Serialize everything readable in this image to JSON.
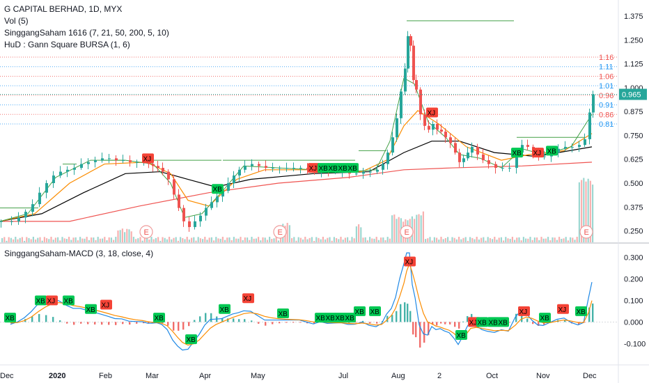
{
  "header": {
    "symbol": "G CAPITAL BERHAD, 1D, MYX",
    "vol": "Vol (5)",
    "indicator1": "SinggangSaham 1616 (7, 21, 50, 200, 5, 10)",
    "indicator2": "HuD : Gann Square BURSA (1, 6)"
  },
  "macd_pane": {
    "title": "SinggangSaham-MACD (3, 18, close, 4)"
  },
  "colors": {
    "up": "#26a69a",
    "down": "#ef5350",
    "ma7": "#43a047",
    "ma21": "#fb8c00",
    "ma50": "#000000",
    "ma200": "#ef5350",
    "macd": "#1e88e5",
    "signal": "#fb8c00",
    "gann_blue": "#2196f3",
    "gann_red": "#ef5350",
    "signal_green": "#00c853",
    "signal_red": "#f44336"
  },
  "chart_data": {
    "type": "candlestick",
    "price_axis": {
      "ticks": [
        "1.375",
        "1.250",
        "1.125",
        "1.000",
        "0.875",
        "0.750",
        "0.625",
        "0.500",
        "0.375",
        "0.250"
      ]
    },
    "current_price": "0.965",
    "gann_levels": [
      {
        "value": "1.16",
        "color": "red"
      },
      {
        "value": "1.11",
        "color": "blue"
      },
      {
        "value": "1.06",
        "color": "red"
      },
      {
        "value": "1.01",
        "color": "blue"
      },
      {
        "value": "0.96",
        "color": "red"
      },
      {
        "value": "0.91",
        "color": "blue"
      },
      {
        "value": "0.86",
        "color": "red"
      },
      {
        "value": "0.81",
        "color": "blue"
      }
    ],
    "x_axis": {
      "labels": [
        "Dec",
        "2020",
        "Feb",
        "Mar",
        "Apr",
        "May",
        "Jul",
        "Aug",
        "2",
        "Oct",
        "Nov",
        "Dec"
      ]
    },
    "price_series": [
      [
        0,
        0.3
      ],
      [
        15,
        0.3
      ],
      [
        25,
        0.32
      ],
      [
        35,
        0.35
      ],
      [
        45,
        0.39
      ],
      [
        55,
        0.45
      ],
      [
        65,
        0.5
      ],
      [
        75,
        0.54
      ],
      [
        85,
        0.56
      ],
      [
        95,
        0.57
      ],
      [
        105,
        0.58
      ],
      [
        115,
        0.6
      ],
      [
        125,
        0.61
      ],
      [
        135,
        0.62
      ],
      [
        145,
        0.63
      ],
      [
        155,
        0.63
      ],
      [
        165,
        0.62
      ],
      [
        175,
        0.62
      ],
      [
        185,
        0.61
      ],
      [
        195,
        0.61
      ],
      [
        205,
        0.61
      ],
      [
        212,
        0.6
      ],
      [
        218,
        0.59
      ],
      [
        225,
        0.58
      ],
      [
        232,
        0.56
      ],
      [
        240,
        0.52
      ],
      [
        248,
        0.44
      ],
      [
        255,
        0.37
      ],
      [
        262,
        0.3
      ],
      [
        270,
        0.27
      ],
      [
        278,
        0.3
      ],
      [
        286,
        0.33
      ],
      [
        294,
        0.37
      ],
      [
        302,
        0.4
      ],
      [
        310,
        0.43
      ],
      [
        318,
        0.46
      ],
      [
        326,
        0.5
      ],
      [
        334,
        0.54
      ],
      [
        342,
        0.57
      ],
      [
        350,
        0.59
      ],
      [
        360,
        0.6
      ],
      [
        370,
        0.59
      ],
      [
        380,
        0.58
      ],
      [
        390,
        0.58
      ],
      [
        400,
        0.58
      ],
      [
        410,
        0.58
      ],
      [
        420,
        0.58
      ],
      [
        430,
        0.58
      ],
      [
        440,
        0.57
      ],
      [
        450,
        0.56
      ],
      [
        460,
        0.57
      ],
      [
        470,
        0.56
      ],
      [
        480,
        0.56
      ],
      [
        490,
        0.56
      ],
      [
        500,
        0.55
      ],
      [
        510,
        0.55
      ],
      [
        520,
        0.56
      ],
      [
        530,
        0.56
      ],
      [
        540,
        0.57
      ],
      [
        548,
        0.6
      ],
      [
        555,
        0.66
      ],
      [
        562,
        0.74
      ],
      [
        568,
        0.84
      ],
      [
        574,
        0.98
      ],
      [
        580,
        1.1
      ],
      [
        584,
        1.27
      ],
      [
        588,
        1.22
      ],
      [
        592,
        1.04
      ],
      [
        596,
        0.99
      ],
      [
        602,
        0.86
      ],
      [
        608,
        0.8
      ],
      [
        614,
        0.78
      ],
      [
        620,
        0.81
      ],
      [
        626,
        0.78
      ],
      [
        632,
        0.77
      ],
      [
        638,
        0.74
      ],
      [
        645,
        0.71
      ],
      [
        652,
        0.66
      ],
      [
        658,
        0.61
      ],
      [
        664,
        0.63
      ],
      [
        670,
        0.66
      ],
      [
        676,
        0.69
      ],
      [
        684,
        0.65
      ],
      [
        692,
        0.62
      ],
      [
        700,
        0.6
      ],
      [
        710,
        0.58
      ],
      [
        720,
        0.58
      ],
      [
        730,
        0.58
      ],
      [
        740,
        0.66
      ],
      [
        748,
        0.7
      ],
      [
        756,
        0.69
      ],
      [
        764,
        0.66
      ],
      [
        772,
        0.64
      ],
      [
        780,
        0.64
      ],
      [
        790,
        0.66
      ],
      [
        800,
        0.68
      ],
      [
        810,
        0.69
      ],
      [
        820,
        0.69
      ],
      [
        830,
        0.7
      ],
      [
        838,
        0.73
      ],
      [
        845,
        0.87
      ],
      [
        850,
        0.965
      ]
    ],
    "ma_lines": {
      "ma7": [
        [
          0,
          0.3
        ],
        [
          40,
          0.34
        ],
        [
          80,
          0.53
        ],
        [
          130,
          0.62
        ],
        [
          180,
          0.62
        ],
        [
          220,
          0.6
        ],
        [
          245,
          0.5
        ],
        [
          265,
          0.32
        ],
        [
          290,
          0.34
        ],
        [
          320,
          0.46
        ],
        [
          350,
          0.59
        ],
        [
          400,
          0.58
        ],
        [
          450,
          0.57
        ],
        [
          500,
          0.56
        ],
        [
          540,
          0.57
        ],
        [
          560,
          0.72
        ],
        [
          580,
          1.05
        ],
        [
          595,
          1.02
        ],
        [
          615,
          0.82
        ],
        [
          640,
          0.74
        ],
        [
          660,
          0.65
        ],
        [
          690,
          0.63
        ],
        [
          720,
          0.58
        ],
        [
          750,
          0.68
        ],
        [
          780,
          0.65
        ],
        [
          820,
          0.69
        ],
        [
          850,
          0.86
        ]
      ],
      "ma21": [
        [
          0,
          0.3
        ],
        [
          50,
          0.34
        ],
        [
          100,
          0.5
        ],
        [
          150,
          0.6
        ],
        [
          210,
          0.61
        ],
        [
          245,
          0.55
        ],
        [
          270,
          0.41
        ],
        [
          300,
          0.38
        ],
        [
          340,
          0.52
        ],
        [
          380,
          0.57
        ],
        [
          450,
          0.57
        ],
        [
          520,
          0.56
        ],
        [
          555,
          0.62
        ],
        [
          580,
          0.8
        ],
        [
          600,
          0.88
        ],
        [
          630,
          0.81
        ],
        [
          670,
          0.69
        ],
        [
          720,
          0.62
        ],
        [
          760,
          0.65
        ],
        [
          810,
          0.67
        ],
        [
          850,
          0.76
        ]
      ],
      "ma50": [
        [
          0,
          0.3
        ],
        [
          60,
          0.34
        ],
        [
          120,
          0.45
        ],
        [
          180,
          0.55
        ],
        [
          230,
          0.56
        ],
        [
          270,
          0.52
        ],
        [
          310,
          0.48
        ],
        [
          360,
          0.52
        ],
        [
          450,
          0.55
        ],
        [
          530,
          0.56
        ],
        [
          580,
          0.66
        ],
        [
          620,
          0.72
        ],
        [
          660,
          0.72
        ],
        [
          710,
          0.66
        ],
        [
          770,
          0.64
        ],
        [
          850,
          0.69
        ]
      ],
      "ma200": [
        [
          0,
          0.3
        ],
        [
          100,
          0.3
        ],
        [
          200,
          0.38
        ],
        [
          300,
          0.45
        ],
        [
          400,
          0.5
        ],
        [
          500,
          0.53
        ],
        [
          580,
          0.57
        ],
        [
          650,
          0.58
        ],
        [
          750,
          0.59
        ],
        [
          850,
          0.61
        ]
      ]
    },
    "macd_axis": {
      "ticks": [
        "0.300",
        "0.200",
        "0.100",
        "0.000",
        "-0.100"
      ]
    },
    "signals_main": [
      {
        "label": "XJ",
        "x": 212,
        "price": 0.63,
        "type": "sell"
      },
      {
        "label": "XB",
        "x": 312,
        "price": 0.47,
        "type": "buy"
      },
      {
        "label": "XJ",
        "x": 450,
        "price": 0.58,
        "type": "sell"
      },
      {
        "label": "XB",
        "x": 464,
        "price": 0.58,
        "type": "buy"
      },
      {
        "label": "XB",
        "x": 478,
        "price": 0.58,
        "type": "buy"
      },
      {
        "label": "XB",
        "x": 492,
        "price": 0.58,
        "type": "buy"
      },
      {
        "label": "XB",
        "x": 506,
        "price": 0.58,
        "type": "buy"
      },
      {
        "label": "XJ",
        "x": 620,
        "price": 0.87,
        "type": "sell"
      },
      {
        "label": "XB",
        "x": 742,
        "price": 0.66,
        "type": "buy"
      },
      {
        "label": "XJ",
        "x": 772,
        "price": 0.66,
        "type": "sell"
      },
      {
        "label": "XB",
        "x": 792,
        "price": 0.67,
        "type": "buy"
      }
    ],
    "signals_macd": [
      {
        "label": "XB",
        "x": 14,
        "value": 0.02,
        "type": "buy"
      },
      {
        "label": "XB",
        "x": 58,
        "value": 0.1,
        "type": "buy"
      },
      {
        "label": "XJ",
        "x": 74,
        "value": 0.1,
        "type": "sell"
      },
      {
        "label": "XB",
        "x": 98,
        "value": 0.1,
        "type": "buy"
      },
      {
        "label": "XB",
        "x": 130,
        "value": 0.06,
        "type": "buy"
      },
      {
        "label": "XJ",
        "x": 152,
        "value": 0.08,
        "type": "sell"
      },
      {
        "label": "XB",
        "x": 228,
        "value": 0.02,
        "type": "buy"
      },
      {
        "label": "XB",
        "x": 274,
        "value": -0.08,
        "type": "buy"
      },
      {
        "label": "XB",
        "x": 322,
        "value": 0.06,
        "type": "buy"
      },
      {
        "label": "XJ",
        "x": 356,
        "value": 0.11,
        "type": "sell"
      },
      {
        "label": "XB",
        "x": 406,
        "value": 0.04,
        "type": "buy"
      },
      {
        "label": "XB",
        "x": 460,
        "value": 0.02,
        "type": "buy"
      },
      {
        "label": "XB",
        "x": 474,
        "value": 0.02,
        "type": "buy"
      },
      {
        "label": "XB",
        "x": 488,
        "value": 0.02,
        "type": "buy"
      },
      {
        "label": "XB",
        "x": 502,
        "value": 0.02,
        "type": "buy"
      },
      {
        "label": "XB",
        "x": 516,
        "value": 0.05,
        "type": "buy"
      },
      {
        "label": "XB",
        "x": 538,
        "value": 0.05,
        "type": "buy"
      },
      {
        "label": "XJ",
        "x": 588,
        "value": 0.28,
        "type": "sell"
      },
      {
        "label": "XB",
        "x": 662,
        "value": -0.06,
        "type": "buy"
      },
      {
        "label": "XJ",
        "x": 680,
        "value": 0.0,
        "type": "sell"
      },
      {
        "label": "XB",
        "x": 692,
        "value": 0.0,
        "type": "buy"
      },
      {
        "label": "XB",
        "x": 708,
        "value": 0.0,
        "type": "buy"
      },
      {
        "label": "XB",
        "x": 722,
        "value": 0.0,
        "type": "buy"
      },
      {
        "label": "XJ",
        "x": 752,
        "value": 0.05,
        "type": "sell"
      },
      {
        "label": "XB",
        "x": 782,
        "value": 0.02,
        "type": "buy"
      },
      {
        "label": "XJ",
        "x": 808,
        "value": 0.06,
        "type": "sell"
      },
      {
        "label": "XB",
        "x": 834,
        "value": 0.05,
        "type": "buy"
      }
    ],
    "earnings_markers": [
      "E",
      "E",
      "E",
      "E"
    ],
    "earnings_x": [
      210,
      402,
      584,
      842
    ]
  }
}
